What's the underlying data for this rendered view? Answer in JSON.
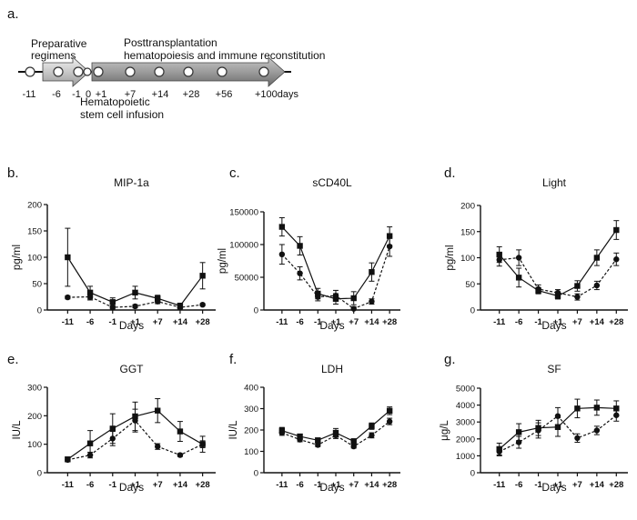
{
  "timeline": {
    "panel_label": "a.",
    "phase1": [
      "Preparative",
      "regimens"
    ],
    "phase2": [
      "Posttransplantation",
      "hematopoiesis and immune reconstitution"
    ],
    "infusion": [
      "Hematopoietic",
      "stem cell infusion"
    ],
    "ticks": [
      "-11",
      "-6",
      "-1",
      "0",
      "+1",
      "+7",
      "+14",
      "+28",
      "+56",
      "+100days"
    ]
  },
  "chart_data": [
    {
      "panel": "b.",
      "type": "line",
      "title": "MIP-1a",
      "xlabel": "Days",
      "ylabel": "pg/ml",
      "categories": [
        "-11",
        "-6",
        "-1",
        "+1",
        "+7",
        "+14",
        "+28"
      ],
      "ylim": [
        0,
        200
      ],
      "yticks": [
        "0",
        "50",
        "100",
        "150",
        "200"
      ],
      "series": [
        {
          "name": "square",
          "marker": "square",
          "line": "solid",
          "values": [
            100,
            33,
            15,
            33,
            22,
            8,
            65
          ],
          "errors": [
            55,
            12,
            8,
            12,
            6,
            5,
            25
          ]
        },
        {
          "name": "circle",
          "marker": "circle",
          "line": "dashed",
          "values": [
            24,
            25,
            5,
            7,
            16,
            5,
            10
          ],
          "errors": [
            3,
            6,
            3,
            3,
            4,
            3,
            2
          ]
        }
      ]
    },
    {
      "panel": "c.",
      "type": "line",
      "title": "sCD40L",
      "xlabel": "Days",
      "ylabel": "pg/ml",
      "categories": [
        "-11",
        "-6",
        "-1",
        "+1",
        "+7",
        "+14",
        "+28"
      ],
      "ylim": [
        0,
        150000
      ],
      "yticks": [
        "0",
        "50000",
        "100000",
        "150000"
      ],
      "series": [
        {
          "name": "square",
          "marker": "square",
          "line": "solid",
          "values": [
            127000,
            98000,
            25000,
            17000,
            18000,
            58000,
            113000
          ],
          "errors": [
            14000,
            14000,
            8000,
            8000,
            10000,
            14000,
            14000
          ]
        },
        {
          "name": "circle",
          "marker": "circle",
          "line": "dashed",
          "values": [
            85000,
            56000,
            20000,
            22000,
            2000,
            13000,
            97000
          ],
          "errors": [
            15000,
            10000,
            6000,
            8000,
            3000,
            4000,
            15000
          ]
        }
      ]
    },
    {
      "panel": "d.",
      "type": "line",
      "title": "Light",
      "xlabel": "Days",
      "ylabel": "pg/ml",
      "categories": [
        "-11",
        "-6",
        "-1",
        "+1",
        "+7",
        "+14",
        "+28"
      ],
      "ylim": [
        0,
        200
      ],
      "yticks": [
        "0",
        "50",
        "100",
        "150",
        "200"
      ],
      "series": [
        {
          "name": "square",
          "marker": "square",
          "line": "solid",
          "values": [
            106,
            62,
            37,
            27,
            46,
            100,
            153
          ],
          "errors": [
            15,
            18,
            6,
            6,
            10,
            15,
            18
          ]
        },
        {
          "name": "circle",
          "marker": "circle",
          "line": "dashed",
          "values": [
            96,
            100,
            40,
            33,
            25,
            47,
            97
          ],
          "errors": [
            12,
            15,
            8,
            6,
            6,
            8,
            12
          ]
        }
      ]
    },
    {
      "panel": "e.",
      "type": "line",
      "title": "GGT",
      "xlabel": "Days",
      "ylabel": "IU/L",
      "categories": [
        "-11",
        "-6",
        "-1",
        "+1",
        "+7",
        "+14",
        "+28"
      ],
      "ylim": [
        0,
        300
      ],
      "yticks": [
        "0",
        "100",
        "200",
        "300"
      ],
      "series": [
        {
          "name": "square",
          "marker": "square",
          "line": "solid",
          "values": [
            47,
            103,
            155,
            198,
            218,
            145,
            100
          ],
          "errors": [
            8,
            45,
            52,
            50,
            42,
            35,
            28
          ]
        },
        {
          "name": "circle",
          "marker": "circle",
          "line": "dashed",
          "values": [
            45,
            62,
            120,
            183,
            92,
            62,
            100
          ],
          "errors": [
            6,
            10,
            25,
            40,
            10,
            5,
            12
          ]
        }
      ]
    },
    {
      "panel": "f.",
      "type": "line",
      "title": "LDH",
      "xlabel": "Days",
      "ylabel": "IU/L",
      "categories": [
        "-11",
        "-6",
        "-1",
        "+1",
        "+7",
        "+14",
        "+28"
      ],
      "ylim": [
        0,
        400
      ],
      "yticks": [
        "0",
        "100",
        "200",
        "300",
        "400"
      ],
      "series": [
        {
          "name": "square",
          "marker": "square",
          "line": "solid",
          "values": [
            197,
            170,
            152,
            187,
            147,
            218,
            290
          ],
          "errors": [
            15,
            10,
            10,
            20,
            12,
            15,
            18
          ]
        },
        {
          "name": "circle",
          "marker": "circle",
          "line": "dashed",
          "values": [
            187,
            155,
            130,
            175,
            123,
            175,
            240
          ],
          "errors": [
            12,
            10,
            8,
            15,
            8,
            12,
            15
          ]
        }
      ]
    },
    {
      "panel": "g.",
      "type": "line",
      "title": "SF",
      "xlabel": "Days",
      "ylabel": "μg/L",
      "categories": [
        "-11",
        "-6",
        "-1",
        "+1",
        "+7",
        "+14",
        "+28"
      ],
      "ylim": [
        0,
        5000
      ],
      "yticks": [
        "0",
        "1000",
        "2000",
        "3000",
        "4000",
        "5000"
      ],
      "series": [
        {
          "name": "square",
          "marker": "square",
          "line": "solid",
          "values": [
            1400,
            2400,
            2650,
            2700,
            3800,
            3850,
            3800
          ],
          "errors": [
            350,
            500,
            450,
            550,
            550,
            450,
            450
          ]
        },
        {
          "name": "circle",
          "marker": "circle",
          "line": "dashed",
          "values": [
            1250,
            1800,
            2500,
            3350,
            2050,
            2500,
            3400
          ],
          "errors": [
            250,
            350,
            450,
            500,
            250,
            250,
            350
          ]
        }
      ]
    }
  ]
}
